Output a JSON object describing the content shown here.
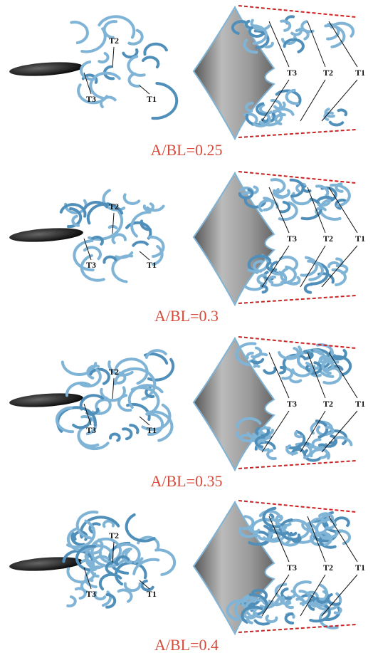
{
  "panels": [
    {
      "caption": "A/BL=0.25",
      "side_labels": [
        "T2",
        "T3",
        "T1"
      ],
      "front_labels": [
        "T3",
        "T2",
        "T1"
      ]
    },
    {
      "caption": "A/BL=0.3",
      "side_labels": [
        "T2",
        "T3",
        "T1"
      ],
      "front_labels": [
        "T3",
        "T2",
        "T1"
      ]
    },
    {
      "caption": "A/BL=0.35",
      "side_labels": [
        "T2",
        "T3",
        "T1"
      ],
      "front_labels": [
        "T3",
        "T2",
        "T1"
      ]
    },
    {
      "caption": "A/BL=0.4",
      "side_labels": [
        "T2",
        "T3",
        "T1"
      ],
      "front_labels": [
        "T3",
        "T2",
        "T1"
      ]
    }
  ]
}
